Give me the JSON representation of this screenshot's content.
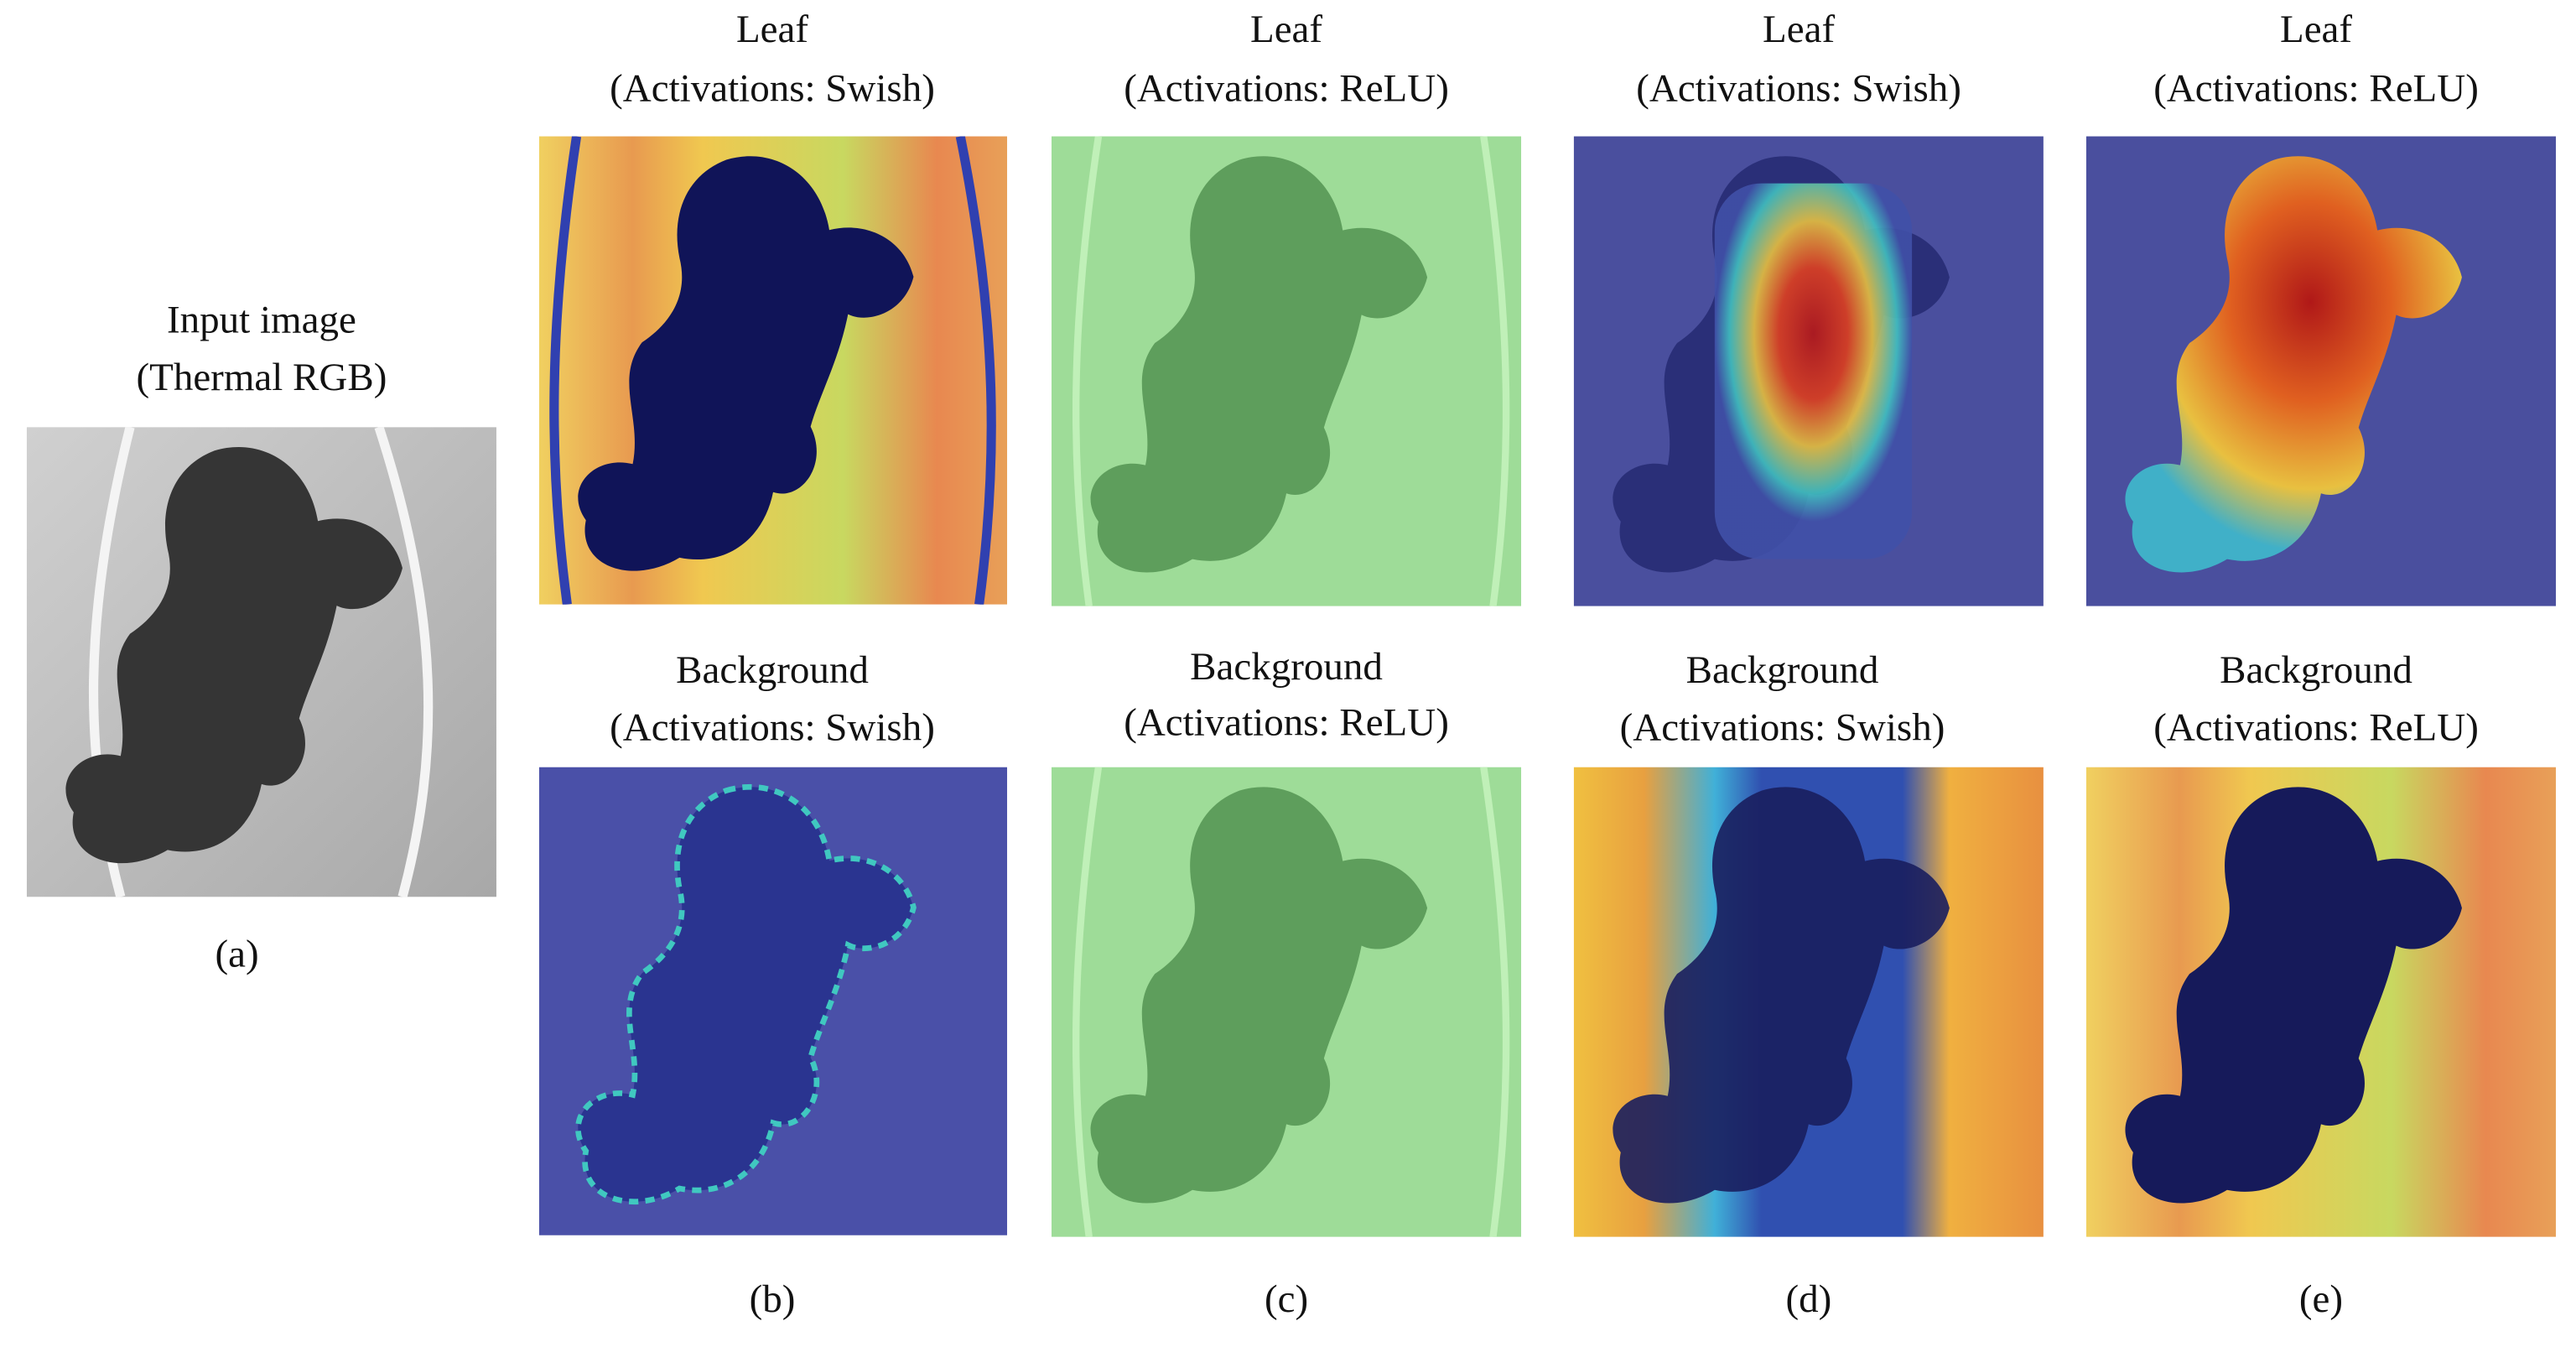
{
  "input": {
    "title": "Input image",
    "subtitle": "(Thermal RGB)",
    "label": "(a)"
  },
  "columns": [
    {
      "label": "(b)",
      "panels": [
        {
          "title": "Leaf",
          "subtitle": "(Activations: Swish)"
        },
        {
          "title": "Background",
          "subtitle": "(Activations: Swish)"
        }
      ]
    },
    {
      "label": "(c)",
      "panels": [
        {
          "title": "Leaf",
          "subtitle": "(Activations: ReLU)"
        },
        {
          "title": "Background",
          "subtitle": "(Activations: ReLU)"
        }
      ]
    },
    {
      "label": "(d)",
      "panels": [
        {
          "title": "Leaf",
          "subtitle": "(Activations: Swish)"
        },
        {
          "title": "Background",
          "subtitle": "(Activations: Swish)"
        }
      ]
    },
    {
      "label": "(e)",
      "panels": [
        {
          "title": "Leaf",
          "subtitle": "(Activations: ReLU)"
        },
        {
          "title": "Background",
          "subtitle": "(Activations: ReLU)"
        }
      ]
    }
  ]
}
